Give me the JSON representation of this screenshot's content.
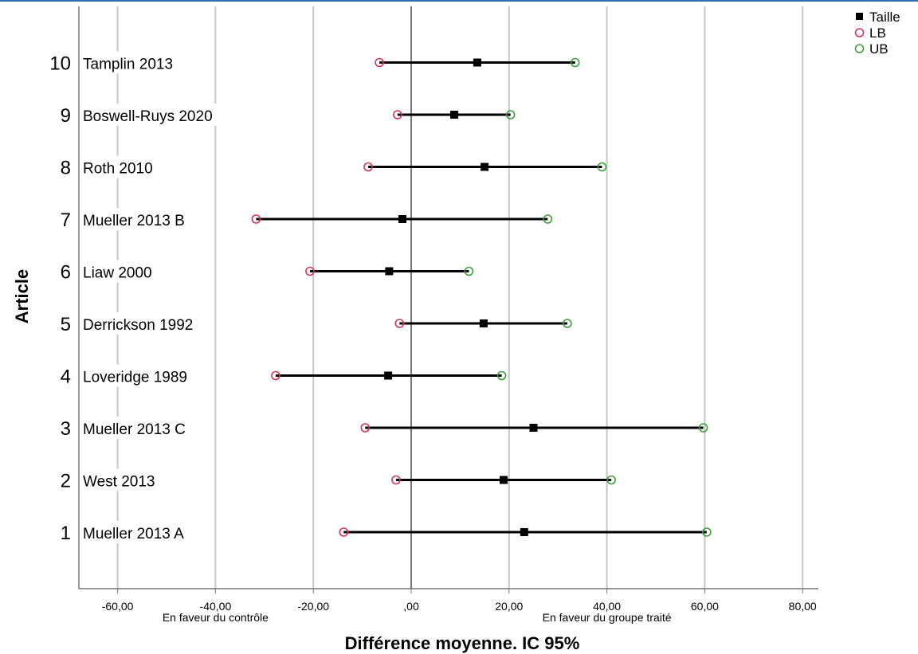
{
  "chart_data": {
    "type": "forest",
    "xlabel": "Différence moyenne. IC 95%",
    "ylabel": "Article",
    "xlim": [
      -68,
      88
    ],
    "ylim": [
      0,
      11
    ],
    "xticks": [
      {
        "value": -60,
        "label": "-60,00"
      },
      {
        "value": -40,
        "label": "-40,00"
      },
      {
        "value": -20,
        "label": "-20,00"
      },
      {
        "value": 0,
        "label": ",00"
      },
      {
        "value": 20,
        "label": "20,00"
      },
      {
        "value": 40,
        "label": "40,00"
      },
      {
        "value": 60,
        "label": "60,00"
      },
      {
        "value": 80,
        "label": "80,00"
      }
    ],
    "x_annotations": [
      {
        "x": -40,
        "text": "En faveur du contrôle"
      },
      {
        "x": 40,
        "text": "En faveur du groupe traité"
      }
    ],
    "grid": "vertical",
    "reference_line": 0,
    "legend": {
      "placement": "top-right",
      "entries": [
        {
          "label": "Taille",
          "marker": "filled-square",
          "color": "#000000"
        },
        {
          "label": "LB",
          "marker": "hollow-circle",
          "color": "#d6345a"
        },
        {
          "label": "UB",
          "marker": "hollow-circle",
          "color": "#3aa13a"
        }
      ]
    },
    "studies": [
      {
        "y": 10,
        "name": "Tamplin 2013",
        "estimate": 13.5,
        "lb": -6.5,
        "ub": 33.5
      },
      {
        "y": 9,
        "name": "Boswell-Ruys 2020",
        "estimate": 8.8,
        "lb": -2.8,
        "ub": 20.3
      },
      {
        "y": 8,
        "name": "Roth 2010",
        "estimate": 15.0,
        "lb": -8.8,
        "ub": 39.0
      },
      {
        "y": 7,
        "name": "Mueller 2013 B",
        "estimate": -1.8,
        "lb": -31.7,
        "ub": 27.9
      },
      {
        "y": 6,
        "name": "Liaw 2000",
        "estimate": -4.5,
        "lb": -20.7,
        "ub": 11.8
      },
      {
        "y": 5,
        "name": "Derrickson 1992",
        "estimate": 14.8,
        "lb": -2.4,
        "ub": 31.9
      },
      {
        "y": 4,
        "name": "Loveridge 1989",
        "estimate": -4.7,
        "lb": -27.7,
        "ub": 18.5
      },
      {
        "y": 3,
        "name": "Mueller 2013 C",
        "estimate": 25.0,
        "lb": -9.4,
        "ub": 59.7
      },
      {
        "y": 2,
        "name": "West 2013",
        "estimate": 18.9,
        "lb": -3.1,
        "ub": 40.9
      },
      {
        "y": 1,
        "name": "Mueller 2013 A",
        "estimate": 23.1,
        "lb": -13.8,
        "ub": 60.4
      }
    ]
  }
}
